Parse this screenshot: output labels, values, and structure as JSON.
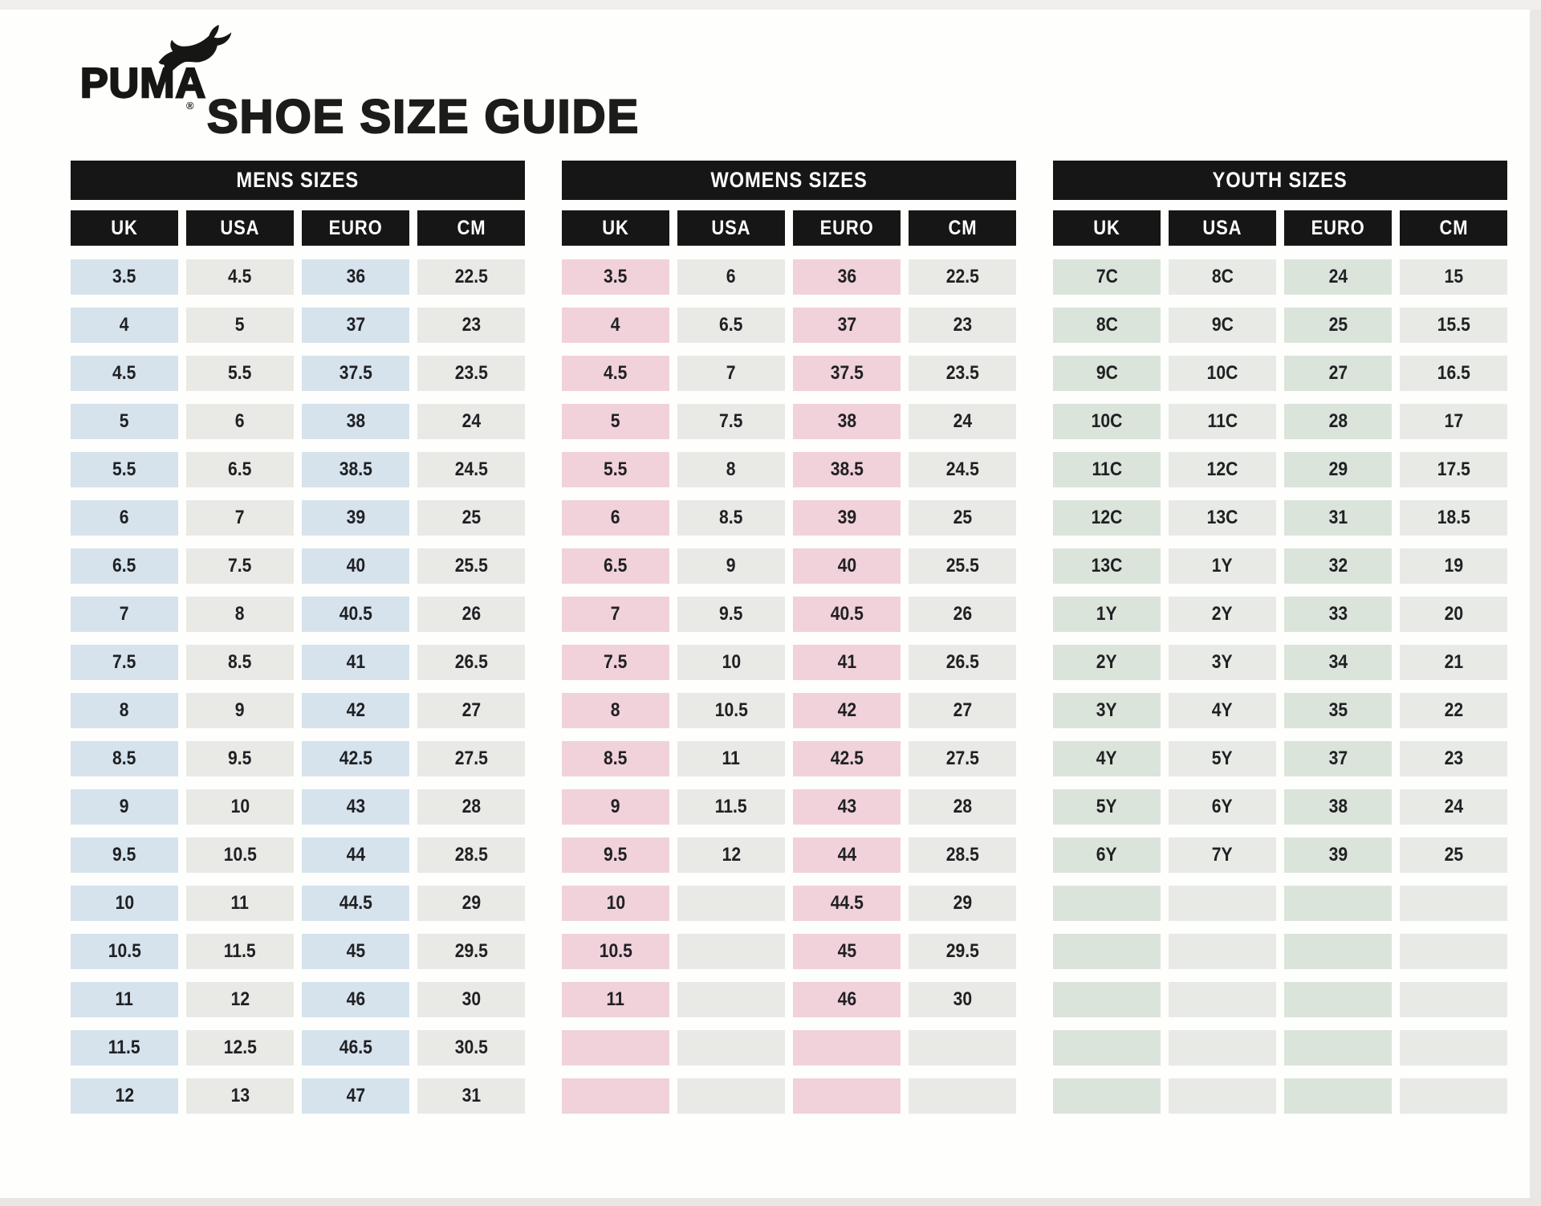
{
  "header": {
    "brand": "PUMA",
    "registered": "®",
    "title": "SHOE SIZE GUIDE",
    "logo_icon": "puma-cat-icon",
    "brand_color": "#161614"
  },
  "tables": [
    {
      "id": "mens",
      "title": "MENS SIZES",
      "columns": [
        "UK",
        "USA",
        "EURO",
        "CM"
      ],
      "header_bg": "#161616",
      "accent_color": "#d6e3ed",
      "neutral_color": "#e9e9e6",
      "rows": [
        [
          "3.5",
          "4.5",
          "36",
          "22.5"
        ],
        [
          "4",
          "5",
          "37",
          "23"
        ],
        [
          "4.5",
          "5.5",
          "37.5",
          "23.5"
        ],
        [
          "5",
          "6",
          "38",
          "24"
        ],
        [
          "5.5",
          "6.5",
          "38.5",
          "24.5"
        ],
        [
          "6",
          "7",
          "39",
          "25"
        ],
        [
          "6.5",
          "7.5",
          "40",
          "25.5"
        ],
        [
          "7",
          "8",
          "40.5",
          "26"
        ],
        [
          "7.5",
          "8.5",
          "41",
          "26.5"
        ],
        [
          "8",
          "9",
          "42",
          "27"
        ],
        [
          "8.5",
          "9.5",
          "42.5",
          "27.5"
        ],
        [
          "9",
          "10",
          "43",
          "28"
        ],
        [
          "9.5",
          "10.5",
          "44",
          "28.5"
        ],
        [
          "10",
          "11",
          "44.5",
          "29"
        ],
        [
          "10.5",
          "11.5",
          "45",
          "29.5"
        ],
        [
          "11",
          "12",
          "46",
          "30"
        ],
        [
          "11.5",
          "12.5",
          "46.5",
          "30.5"
        ],
        [
          "12",
          "13",
          "47",
          "31"
        ]
      ]
    },
    {
      "id": "womens",
      "title": "WOMENS SIZES",
      "columns": [
        "UK",
        "USA",
        "EURO",
        "CM"
      ],
      "header_bg": "#161616",
      "accent_color": "#f1d2da",
      "neutral_color": "#e9e9e6",
      "rows": [
        [
          "3.5",
          "6",
          "36",
          "22.5"
        ],
        [
          "4",
          "6.5",
          "37",
          "23"
        ],
        [
          "4.5",
          "7",
          "37.5",
          "23.5"
        ],
        [
          "5",
          "7.5",
          "38",
          "24"
        ],
        [
          "5.5",
          "8",
          "38.5",
          "24.5"
        ],
        [
          "6",
          "8.5",
          "39",
          "25"
        ],
        [
          "6.5",
          "9",
          "40",
          "25.5"
        ],
        [
          "7",
          "9.5",
          "40.5",
          "26"
        ],
        [
          "7.5",
          "10",
          "41",
          "26.5"
        ],
        [
          "8",
          "10.5",
          "42",
          "27"
        ],
        [
          "8.5",
          "11",
          "42.5",
          "27.5"
        ],
        [
          "9",
          "11.5",
          "43",
          "28"
        ],
        [
          "9.5",
          "12",
          "44",
          "28.5"
        ],
        [
          "10",
          "",
          "44.5",
          "29"
        ],
        [
          "10.5",
          "",
          "45",
          "29.5"
        ],
        [
          "11",
          "",
          "46",
          "30"
        ],
        [
          "",
          "",
          "",
          ""
        ],
        [
          "",
          "",
          "",
          ""
        ]
      ]
    },
    {
      "id": "youth",
      "title": "YOUTH SIZES",
      "columns": [
        "UK",
        "USA",
        "EURO",
        "CM"
      ],
      "header_bg": "#161616",
      "accent_color": "#dbe4db",
      "neutral_color": "#e8eae6",
      "rows": [
        [
          "7C",
          "8C",
          "24",
          "15"
        ],
        [
          "8C",
          "9C",
          "25",
          "15.5"
        ],
        [
          "9C",
          "10C",
          "27",
          "16.5"
        ],
        [
          "10C",
          "11C",
          "28",
          "17"
        ],
        [
          "11C",
          "12C",
          "29",
          "17.5"
        ],
        [
          "12C",
          "13C",
          "31",
          "18.5"
        ],
        [
          "13C",
          "1Y",
          "32",
          "19"
        ],
        [
          "1Y",
          "2Y",
          "33",
          "20"
        ],
        [
          "2Y",
          "3Y",
          "34",
          "21"
        ],
        [
          "3Y",
          "4Y",
          "35",
          "22"
        ],
        [
          "4Y",
          "5Y",
          "37",
          "23"
        ],
        [
          "5Y",
          "6Y",
          "38",
          "24"
        ],
        [
          "6Y",
          "7Y",
          "39",
          "25"
        ],
        [
          "",
          "",
          "",
          ""
        ],
        [
          "",
          "",
          "",
          ""
        ],
        [
          "",
          "",
          "",
          ""
        ],
        [
          "",
          "",
          "",
          ""
        ],
        [
          "",
          "",
          "",
          ""
        ]
      ]
    }
  ]
}
